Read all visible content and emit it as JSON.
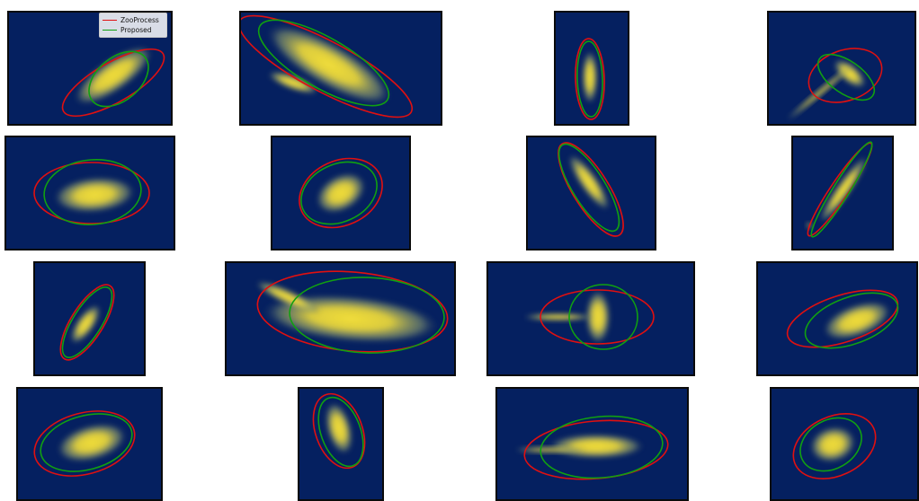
{
  "legend": {
    "items": [
      {
        "label": "ZooProcess",
        "color": "#e01010"
      },
      {
        "label": "Proposed",
        "color": "#11a011"
      }
    ]
  },
  "colors": {
    "background": "#052060",
    "blob": "#f2de3a",
    "frame": "#0a0a0a",
    "zooprocess_ellipse": "#e01010",
    "proposed_ellipse": "#11a011"
  }
}
